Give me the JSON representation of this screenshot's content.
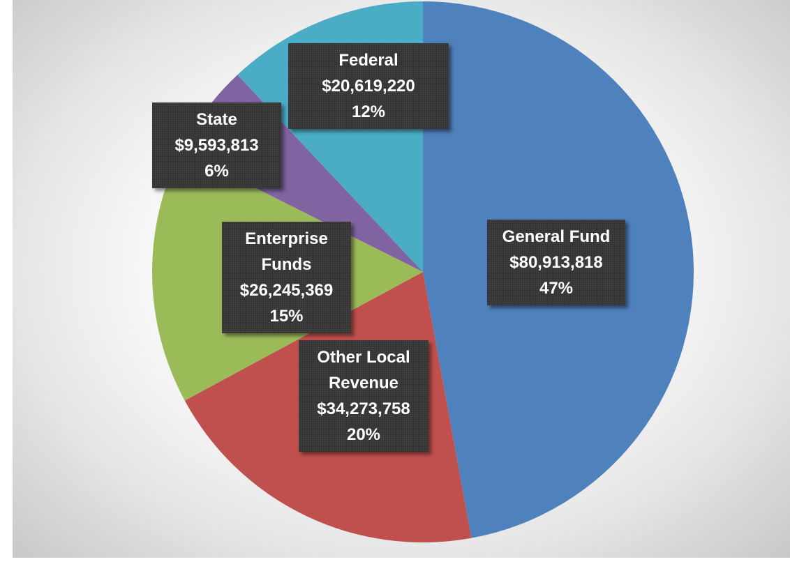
{
  "chart_data": {
    "type": "pie",
    "categories": [
      "General Fund",
      "Other Local Revenue",
      "Enterprise Funds",
      "State",
      "Federal"
    ],
    "values": [
      80913818,
      34273758,
      26245369,
      9593813,
      20619220
    ],
    "value_labels": [
      "$80,913,818",
      "$34,273,758",
      "$26,245,369",
      "$9,593,813",
      "$20,619,220"
    ],
    "percent_labels": [
      "47%",
      "20%",
      "15%",
      "6%",
      "12%"
    ],
    "colors": [
      "#4f81bd",
      "#c0504d",
      "#9bbb59",
      "#8064a2",
      "#4bacc6"
    ]
  }
}
